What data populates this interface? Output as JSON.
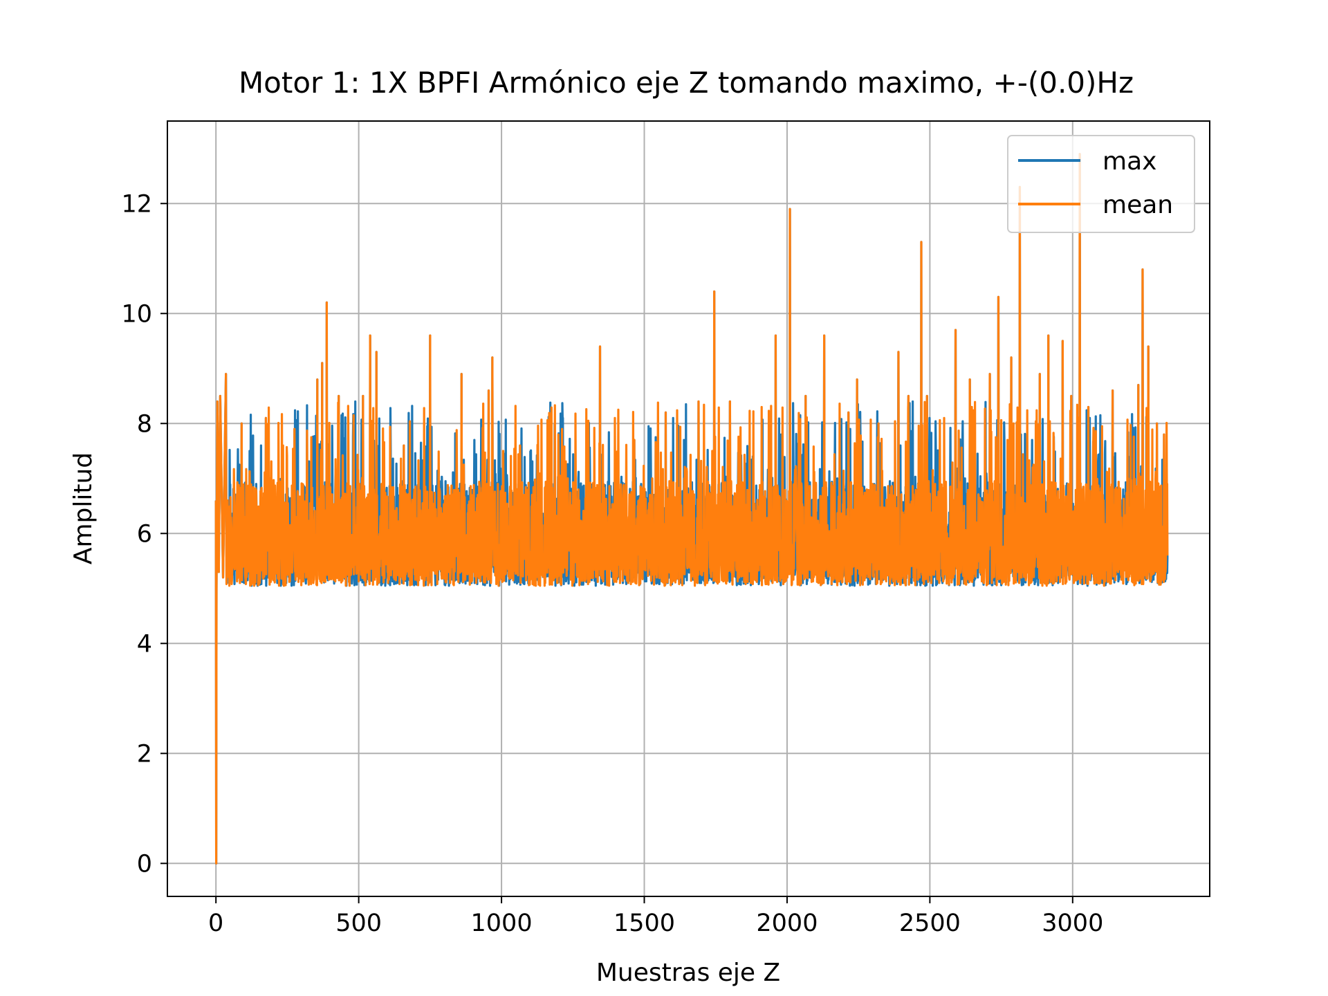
{
  "chart_data": {
    "type": "line",
    "title": "Motor 1: 1X BPFI Armónico eje Z tomando maximo, +-(0.0)Hz",
    "xlabel": "Muestras eje Z",
    "ylabel": "Amplitud",
    "xlim": [
      -170,
      3480
    ],
    "ylim": [
      -0.6,
      13.5
    ],
    "xticks": [
      0,
      500,
      1000,
      1500,
      2000,
      2500,
      3000
    ],
    "yticks": [
      0,
      2,
      4,
      6,
      8,
      10,
      12
    ],
    "xtick_labels": [
      "0",
      "500",
      "1000",
      "1500",
      "2000",
      "2500",
      "3000"
    ],
    "ytick_labels": [
      "0",
      "2",
      "4",
      "6",
      "8",
      "10",
      "12"
    ],
    "grid": true,
    "legend_position": "top-right",
    "series": [
      {
        "name": "max",
        "color": "#1f77b4",
        "sample_count": 3333,
        "baseline": 5.05,
        "noise_band": [
          5.05,
          7.4
        ],
        "start_points": [
          [
            0,
            6.6
          ],
          [
            1,
            0.0
          ],
          [
            2,
            5.0
          ],
          [
            5,
            8.4
          ],
          [
            10,
            5.3
          ],
          [
            15,
            8.5
          ],
          [
            25,
            5.2
          ],
          [
            35,
            8.9
          ]
        ],
        "peaks": [
          [
            15,
            8.5
          ],
          [
            35,
            8.9
          ],
          [
            90,
            8.0
          ],
          [
            175,
            8.1
          ],
          [
            275,
            7.9
          ],
          [
            355,
            8.8
          ],
          [
            372,
            9.1
          ],
          [
            388,
            10.2
          ],
          [
            430,
            8.5
          ],
          [
            515,
            8.5
          ],
          [
            540,
            9.6
          ],
          [
            562,
            9.3
          ],
          [
            658,
            7.6
          ],
          [
            750,
            9.6
          ],
          [
            860,
            8.9
          ],
          [
            955,
            8.6
          ],
          [
            968,
            9.2
          ],
          [
            1065,
            7.6
          ],
          [
            1345,
            9.4
          ],
          [
            1465,
            7.7
          ],
          [
            1575,
            8.2
          ],
          [
            1690,
            8.4
          ],
          [
            1745,
            10.4
          ],
          [
            1800,
            8.4
          ],
          [
            1960,
            9.6
          ],
          [
            2010,
            11.9
          ],
          [
            2065,
            8.5
          ],
          [
            2130,
            9.6
          ],
          [
            2215,
            8.2
          ],
          [
            2245,
            8.8
          ],
          [
            2320,
            8.0
          ],
          [
            2390,
            9.3
          ],
          [
            2425,
            8.5
          ],
          [
            2470,
            11.3
          ],
          [
            2490,
            8.5
          ],
          [
            2590,
            9.7
          ],
          [
            2640,
            8.8
          ],
          [
            2710,
            8.9
          ],
          [
            2740,
            10.3
          ],
          [
            2785,
            9.2
          ],
          [
            2815,
            12.3
          ],
          [
            2885,
            8.9
          ],
          [
            2915,
            9.6
          ],
          [
            2965,
            9.5
          ],
          [
            2995,
            8.5
          ],
          [
            3025,
            12.9
          ],
          [
            3055,
            8.3
          ],
          [
            3140,
            8.6
          ],
          [
            3230,
            8.7
          ],
          [
            3245,
            10.8
          ],
          [
            3265,
            9.4
          ],
          [
            3295,
            8.0
          ],
          [
            3320,
            7.8
          ]
        ],
        "end_point": [
          3332,
          5.6
        ]
      },
      {
        "name": "mean",
        "color": "#ff7f0e",
        "sample_count": 3333,
        "baseline": 5.05,
        "noise_band": [
          5.05,
          7.4
        ],
        "start_points": [
          [
            0,
            6.6
          ],
          [
            1,
            0.0
          ],
          [
            2,
            5.0
          ],
          [
            5,
            8.4
          ],
          [
            10,
            5.3
          ],
          [
            15,
            8.5
          ],
          [
            25,
            5.2
          ],
          [
            35,
            8.9
          ]
        ],
        "peaks": [
          [
            15,
            8.5
          ],
          [
            35,
            8.9
          ],
          [
            90,
            8.0
          ],
          [
            175,
            8.1
          ],
          [
            275,
            7.9
          ],
          [
            355,
            8.8
          ],
          [
            372,
            9.1
          ],
          [
            388,
            10.2
          ],
          [
            430,
            8.5
          ],
          [
            515,
            8.5
          ],
          [
            540,
            9.6
          ],
          [
            562,
            9.3
          ],
          [
            658,
            7.6
          ],
          [
            750,
            9.6
          ],
          [
            860,
            8.9
          ],
          [
            955,
            8.6
          ],
          [
            968,
            9.2
          ],
          [
            1065,
            7.6
          ],
          [
            1345,
            9.4
          ],
          [
            1465,
            7.7
          ],
          [
            1575,
            8.2
          ],
          [
            1690,
            8.4
          ],
          [
            1745,
            10.4
          ],
          [
            1800,
            8.4
          ],
          [
            1960,
            9.6
          ],
          [
            2010,
            11.9
          ],
          [
            2065,
            8.5
          ],
          [
            2130,
            9.6
          ],
          [
            2215,
            8.2
          ],
          [
            2245,
            8.8
          ],
          [
            2320,
            8.0
          ],
          [
            2390,
            9.3
          ],
          [
            2425,
            8.5
          ],
          [
            2470,
            11.3
          ],
          [
            2490,
            8.5
          ],
          [
            2590,
            9.7
          ],
          [
            2640,
            8.8
          ],
          [
            2710,
            8.9
          ],
          [
            2740,
            10.3
          ],
          [
            2785,
            9.2
          ],
          [
            2815,
            12.3
          ],
          [
            2885,
            8.9
          ],
          [
            2915,
            9.6
          ],
          [
            2965,
            9.5
          ],
          [
            2995,
            8.5
          ],
          [
            3025,
            12.9
          ],
          [
            3055,
            8.3
          ],
          [
            3140,
            8.6
          ],
          [
            3230,
            8.7
          ],
          [
            3245,
            10.8
          ],
          [
            3265,
            9.4
          ],
          [
            3295,
            8.0
          ],
          [
            3320,
            7.8
          ]
        ],
        "end_point": [
          3332,
          5.6
        ]
      }
    ]
  }
}
